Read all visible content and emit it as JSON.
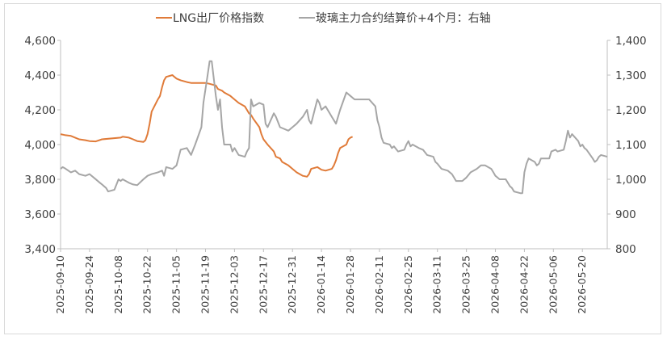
{
  "chart_data": {
    "type": "line",
    "legend_position": "top",
    "grid": false,
    "colors": {
      "lng": "#E07B39",
      "glass": "#A6A6A6",
      "axis": "#BFBFBF",
      "text": "#404040"
    },
    "series": [
      {
        "name": "LNG出厂价格指数",
        "axis": "left",
        "points": [
          [
            "2025-09-10",
            4060
          ],
          [
            "2025-09-12",
            4055
          ],
          [
            "2025-09-15",
            4050
          ],
          [
            "2025-09-17",
            4040
          ],
          [
            "2025-09-19",
            4030
          ],
          [
            "2025-09-22",
            4025
          ],
          [
            "2025-09-24",
            4020
          ],
          [
            "2025-09-27",
            4018
          ],
          [
            "2025-09-30",
            4030
          ],
          [
            "2025-10-09",
            4040
          ],
          [
            "2025-10-10",
            4045
          ],
          [
            "2025-10-13",
            4040
          ],
          [
            "2025-10-15",
            4030
          ],
          [
            "2025-10-17",
            4020
          ],
          [
            "2025-10-20",
            4015
          ],
          [
            "2025-10-21",
            4025
          ],
          [
            "2025-10-22",
            4060
          ],
          [
            "2025-10-23",
            4120
          ],
          [
            "2025-10-24",
            4190
          ],
          [
            "2025-10-27",
            4260
          ],
          [
            "2025-10-28",
            4280
          ],
          [
            "2025-10-29",
            4330
          ],
          [
            "2025-10-30",
            4370
          ],
          [
            "2025-10-31",
            4390
          ],
          [
            "2025-11-03",
            4400
          ],
          [
            "2025-11-04",
            4390
          ],
          [
            "2025-11-05",
            4380
          ],
          [
            "2025-11-06",
            4375
          ],
          [
            "2025-11-07",
            4370
          ],
          [
            "2025-11-10",
            4360
          ],
          [
            "2025-11-12",
            4355
          ],
          [
            "2025-11-14",
            4355
          ],
          [
            "2025-11-17",
            4355
          ],
          [
            "2025-11-19",
            4355
          ],
          [
            "2025-11-21",
            4350
          ],
          [
            "2025-11-24",
            4340
          ],
          [
            "2025-11-25",
            4320
          ],
          [
            "2025-11-27",
            4310
          ],
          [
            "2025-11-28",
            4300
          ],
          [
            "2025-12-01",
            4280
          ],
          [
            "2025-12-03",
            4260
          ],
          [
            "2025-12-05",
            4240
          ],
          [
            "2025-12-08",
            4220
          ],
          [
            "2025-12-09",
            4200
          ],
          [
            "2025-12-10",
            4180
          ],
          [
            "2025-12-11",
            4170
          ],
          [
            "2025-12-12",
            4150
          ],
          [
            "2025-12-15",
            4100
          ],
          [
            "2025-12-16",
            4060
          ],
          [
            "2025-12-17",
            4030
          ],
          [
            "2025-12-19",
            4000
          ],
          [
            "2025-12-22",
            3960
          ],
          [
            "2025-12-23",
            3930
          ],
          [
            "2025-12-25",
            3920
          ],
          [
            "2025-12-26",
            3900
          ],
          [
            "2025-12-29",
            3880
          ],
          [
            "2025-12-31",
            3860
          ],
          [
            "2026-01-02",
            3840
          ],
          [
            "2026-01-05",
            3820
          ],
          [
            "2026-01-07",
            3815
          ],
          [
            "2026-01-08",
            3830
          ],
          [
            "2026-01-09",
            3860
          ],
          [
            "2026-01-12",
            3870
          ],
          [
            "2026-01-14",
            3855
          ],
          [
            "2026-01-16",
            3850
          ],
          [
            "2026-01-19",
            3860
          ],
          [
            "2026-01-20",
            3880
          ],
          [
            "2026-01-21",
            3910
          ],
          [
            "2026-01-22",
            3950
          ],
          [
            "2026-01-23",
            3980
          ],
          [
            "2026-01-26",
            4000
          ],
          [
            "2026-01-27",
            4030
          ],
          [
            "2026-01-28",
            4040
          ],
          [
            "2026-01-29",
            4045
          ]
        ]
      },
      {
        "name": "玻璃主力合约结算价+4个月：右轴",
        "axis": "right",
        "points": [
          [
            "2025-09-10",
            1030
          ],
          [
            "2025-09-11",
            1035
          ],
          [
            "2025-09-12",
            1032
          ],
          [
            "2025-09-15",
            1020
          ],
          [
            "2025-09-17",
            1025
          ],
          [
            "2025-09-19",
            1015
          ],
          [
            "2025-09-22",
            1010
          ],
          [
            "2025-09-24",
            1015
          ],
          [
            "2025-09-26",
            1005
          ],
          [
            "2025-09-29",
            990
          ],
          [
            "2025-09-30",
            985
          ],
          [
            "2025-10-02",
            975
          ],
          [
            "2025-10-03",
            965
          ],
          [
            "2025-10-06",
            970
          ],
          [
            "2025-10-08",
            1000
          ],
          [
            "2025-10-09",
            995
          ],
          [
            "2025-10-10",
            1000
          ],
          [
            "2025-10-13",
            990
          ],
          [
            "2025-10-15",
            985
          ],
          [
            "2025-10-17",
            983
          ],
          [
            "2025-10-20",
            1000
          ],
          [
            "2025-10-22",
            1010
          ],
          [
            "2025-10-24",
            1015
          ],
          [
            "2025-10-27",
            1020
          ],
          [
            "2025-10-29",
            1025
          ],
          [
            "2025-10-30",
            1010
          ],
          [
            "2025-10-31",
            1035
          ],
          [
            "2025-11-03",
            1030
          ],
          [
            "2025-11-05",
            1040
          ],
          [
            "2025-11-07",
            1085
          ],
          [
            "2025-11-10",
            1090
          ],
          [
            "2025-11-12",
            1070
          ],
          [
            "2025-11-14",
            1100
          ],
          [
            "2025-11-17",
            1150
          ],
          [
            "2025-11-18",
            1220
          ],
          [
            "2025-11-19",
            1260
          ],
          [
            "2025-11-20",
            1300
          ],
          [
            "2025-11-21",
            1340
          ],
          [
            "2025-11-22",
            1340
          ],
          [
            "2025-11-24",
            1240
          ],
          [
            "2025-11-25",
            1200
          ],
          [
            "2025-11-26",
            1230
          ],
          [
            "2025-11-27",
            1150
          ],
          [
            "2025-11-28",
            1100
          ],
          [
            "2025-12-01",
            1100
          ],
          [
            "2025-12-02",
            1080
          ],
          [
            "2025-12-03",
            1090
          ],
          [
            "2025-12-05",
            1070
          ],
          [
            "2025-12-08",
            1065
          ],
          [
            "2025-12-09",
            1080
          ],
          [
            "2025-12-10",
            1090
          ],
          [
            "2025-12-11",
            1230
          ],
          [
            "2025-12-12",
            1210
          ],
          [
            "2025-12-15",
            1220
          ],
          [
            "2025-12-17",
            1215
          ],
          [
            "2025-12-18",
            1160
          ],
          [
            "2025-12-19",
            1150
          ],
          [
            "2025-12-22",
            1190
          ],
          [
            "2025-12-23",
            1180
          ],
          [
            "2025-12-25",
            1150
          ],
          [
            "2025-12-29",
            1140
          ],
          [
            "2025-12-31",
            1150
          ],
          [
            "2026-01-02",
            1160
          ],
          [
            "2026-01-05",
            1180
          ],
          [
            "2026-01-07",
            1200
          ],
          [
            "2026-01-08",
            1170
          ],
          [
            "2026-01-09",
            1160
          ],
          [
            "2026-01-12",
            1230
          ],
          [
            "2026-01-13",
            1220
          ],
          [
            "2026-01-14",
            1200
          ],
          [
            "2026-01-16",
            1210
          ],
          [
            "2026-01-19",
            1180
          ],
          [
            "2026-01-21",
            1160
          ],
          [
            "2026-01-23",
            1200
          ],
          [
            "2026-01-26",
            1250
          ],
          [
            "2026-01-28",
            1240
          ],
          [
            "2026-01-30",
            1230
          ],
          [
            "2026-02-02",
            1230
          ],
          [
            "2026-02-06",
            1230
          ],
          [
            "2026-02-09",
            1210
          ],
          [
            "2026-02-10",
            1170
          ],
          [
            "2026-02-11",
            1150
          ],
          [
            "2026-02-12",
            1120
          ],
          [
            "2026-02-13",
            1105
          ],
          [
            "2026-02-16",
            1100
          ],
          [
            "2026-02-17",
            1090
          ],
          [
            "2026-02-18",
            1095
          ],
          [
            "2026-02-20",
            1080
          ],
          [
            "2026-02-23",
            1085
          ],
          [
            "2026-02-24",
            1100
          ],
          [
            "2026-02-25",
            1110
          ],
          [
            "2026-02-26",
            1095
          ],
          [
            "2026-02-27",
            1100
          ],
          [
            "2026-03-02",
            1090
          ],
          [
            "2026-03-04",
            1085
          ],
          [
            "2026-03-06",
            1070
          ],
          [
            "2026-03-09",
            1065
          ],
          [
            "2026-03-10",
            1050
          ],
          [
            "2026-03-11",
            1045
          ],
          [
            "2026-03-13",
            1030
          ],
          [
            "2026-03-16",
            1025
          ],
          [
            "2026-03-18",
            1015
          ],
          [
            "2026-03-19",
            1005
          ],
          [
            "2026-03-20",
            995
          ],
          [
            "2026-03-23",
            995
          ],
          [
            "2026-03-25",
            1005
          ],
          [
            "2026-03-27",
            1020
          ],
          [
            "2026-03-30",
            1030
          ],
          [
            "2026-04-01",
            1040
          ],
          [
            "2026-04-03",
            1040
          ],
          [
            "2026-04-06",
            1030
          ],
          [
            "2026-04-07",
            1020
          ],
          [
            "2026-04-08",
            1010
          ],
          [
            "2026-04-10",
            1000
          ],
          [
            "2026-04-13",
            1000
          ],
          [
            "2026-04-15",
            980
          ],
          [
            "2026-04-16",
            975
          ],
          [
            "2026-04-17",
            965
          ],
          [
            "2026-04-20",
            960
          ],
          [
            "2026-04-21",
            960
          ],
          [
            "2026-04-22",
            1020
          ],
          [
            "2026-04-23",
            1045
          ],
          [
            "2026-04-24",
            1060
          ],
          [
            "2026-04-27",
            1050
          ],
          [
            "2026-04-28",
            1040
          ],
          [
            "2026-04-29",
            1045
          ],
          [
            "2026-04-30",
            1060
          ],
          [
            "2026-05-04",
            1060
          ],
          [
            "2026-05-05",
            1080
          ],
          [
            "2026-05-07",
            1085
          ],
          [
            "2026-05-08",
            1080
          ],
          [
            "2026-05-11",
            1085
          ],
          [
            "2026-05-12",
            1110
          ],
          [
            "2026-05-13",
            1140
          ],
          [
            "2026-05-14",
            1120
          ],
          [
            "2026-05-15",
            1130
          ],
          [
            "2026-05-18",
            1110
          ],
          [
            "2026-05-19",
            1095
          ],
          [
            "2026-05-20",
            1100
          ],
          [
            "2026-05-21",
            1090
          ],
          [
            "2026-05-22",
            1085
          ],
          [
            "2026-05-25",
            1060
          ],
          [
            "2026-05-26",
            1050
          ],
          [
            "2026-05-27",
            1055
          ],
          [
            "2026-05-28",
            1065
          ],
          [
            "2026-05-29",
            1070
          ],
          [
            "2026-06-01",
            1065
          ]
        ]
      }
    ],
    "y_left": {
      "min": 3400,
      "max": 4600,
      "ticks": [
        "3,400",
        "3,600",
        "3,800",
        "4,000",
        "4,200",
        "4,400",
        "4,600"
      ]
    },
    "y_right": {
      "min": 800,
      "max": 1400,
      "ticks": [
        "800",
        "900",
        "1,000",
        "1,100",
        "1,200",
        "1,300",
        "1,400"
      ]
    },
    "x": {
      "min": "2025-09-10",
      "max": "2026-06-01",
      "ticks": [
        "2025-09-10",
        "2025-09-24",
        "2025-10-08",
        "2025-10-22",
        "2025-11-05",
        "2025-11-19",
        "2025-12-03",
        "2025-12-17",
        "2025-12-31",
        "2026-01-14",
        "2026-01-28",
        "2026-02-11",
        "2026-02-25",
        "2026-03-11",
        "2026-03-25",
        "2026-04-08",
        "2026-04-22",
        "2026-05-06",
        "2026-05-20"
      ]
    }
  }
}
